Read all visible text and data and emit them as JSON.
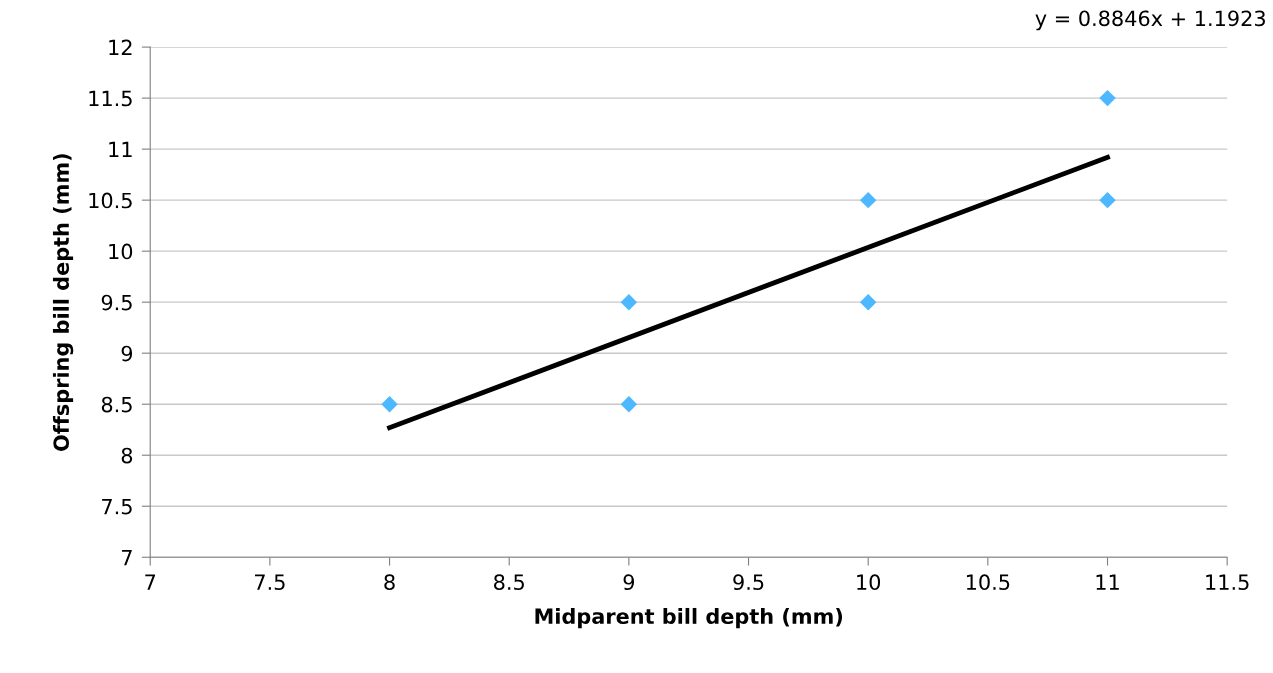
{
  "chart_data": {
    "type": "scatter",
    "xlabel": "Midparent bill depth (mm)",
    "ylabel": "Offspring bill depth (mm)",
    "x": [
      8,
      9,
      9,
      10,
      10,
      11,
      11
    ],
    "series": [
      {
        "color": "#4db8ff",
        "values": [
          8.5,
          9.5,
          8.5,
          10.5,
          9.5,
          11.5,
          10.5
        ],
        "marker": "diamond"
      },
      {
        "type": "line",
        "color": "#000000",
        "x": [
          8,
          11
        ],
        "values": [
          8.27,
          10.92
        ],
        "marker": "none",
        "line_style": "solid"
      }
    ],
    "xlim": [
      7,
      11.5
    ],
    "xticks": [
      7,
      7.5,
      8,
      8.5,
      9,
      9.5,
      10,
      10.5,
      11,
      11.5
    ],
    "ylim": [
      7,
      12
    ],
    "yticks": [
      7,
      7.5,
      8,
      8.5,
      9,
      9.5,
      10,
      10.5,
      11,
      11.5,
      12
    ],
    "grid": "y",
    "legend": false,
    "annotations": [
      "y = 0.8846x + 1.1923"
    ]
  }
}
